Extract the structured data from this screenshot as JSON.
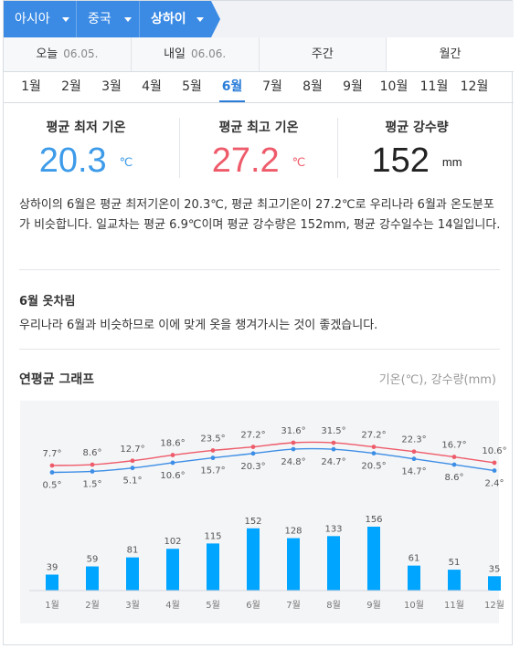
{
  "breadcrumb": {
    "items": [
      "아시아",
      "중국",
      "상하이"
    ]
  },
  "day_tabs": [
    {
      "label": "오늘",
      "sub": "06.05."
    },
    {
      "label": "내일",
      "sub": "06.06."
    },
    {
      "label": "주간",
      "sub": ""
    },
    {
      "label": "월간",
      "sub": ""
    }
  ],
  "month_tabs": [
    "1월",
    "2월",
    "3월",
    "4월",
    "5월",
    "6월",
    "7월",
    "8월",
    "9월",
    "10월",
    "11월",
    "12월"
  ],
  "active_month_index": 5,
  "stats": {
    "low": {
      "label": "평균 최저 기온",
      "value": "20.3",
      "unit": "℃",
      "color": "#3d9be9"
    },
    "high": {
      "label": "평균 최고 기온",
      "value": "27.2",
      "unit": "℃",
      "color": "#ee5b6a"
    },
    "rain": {
      "label": "평균 강수량",
      "value": "152",
      "unit": "mm",
      "color": "#222222"
    }
  },
  "description": "상하이의 6월은 평균 최저기온이 20.3℃, 평균 최고기온이 27.2℃로 우리나라 6월과 온도분포가 비슷합니다. 일교차는 평균 6.9℃이며 평균 강수량은 152mm, 평균 강수일수는 14일입니다.",
  "clothes": {
    "title": "6월 옷차림",
    "text": "우리나라 6월과 비슷하므로 이에 맞게 옷을 챙겨가시는 것이 좋겠습니다."
  },
  "graph": {
    "title": "연평균 그래프",
    "unit_label": "기온(℃), 강수량(mm)"
  },
  "chart_data": {
    "type": "line+bar",
    "categories": [
      "1월",
      "2월",
      "3월",
      "4월",
      "5월",
      "6월",
      "7월",
      "8월",
      "9월",
      "10월",
      "11월",
      "12월"
    ],
    "series": [
      {
        "type": "line",
        "color": "#ee5b6a",
        "values": [
          7.7,
          8.6,
          12.7,
          18.6,
          23.5,
          27.2,
          31.6,
          31.5,
          27.2,
          22.3,
          16.7,
          10.6
        ],
        "labels": [
          "7.7°",
          "8.6°",
          "12.7°",
          "18.6°",
          "23.5°",
          "27.2°",
          "31.6°",
          "31.5°",
          "27.2°",
          "22.3°",
          "16.7°",
          "10.6°"
        ]
      },
      {
        "type": "line",
        "color": "#3d8ee6",
        "values": [
          0.5,
          1.5,
          5.1,
          10.6,
          15.7,
          20.3,
          24.8,
          24.7,
          20.5,
          14.7,
          8.6,
          2.4
        ],
        "labels": [
          "0.5°",
          "1.5°",
          "5.1°",
          "10.6°",
          "15.7°",
          "20.3°",
          "24.8°",
          "24.7°",
          "20.5°",
          "14.7°",
          "8.6°",
          "2.4°"
        ]
      },
      {
        "type": "bar",
        "color": "#00a5ff",
        "values": [
          39,
          59,
          81,
          102,
          115,
          152,
          128,
          133,
          156,
          61,
          51,
          35
        ]
      }
    ],
    "grid": false,
    "legend": "none"
  }
}
